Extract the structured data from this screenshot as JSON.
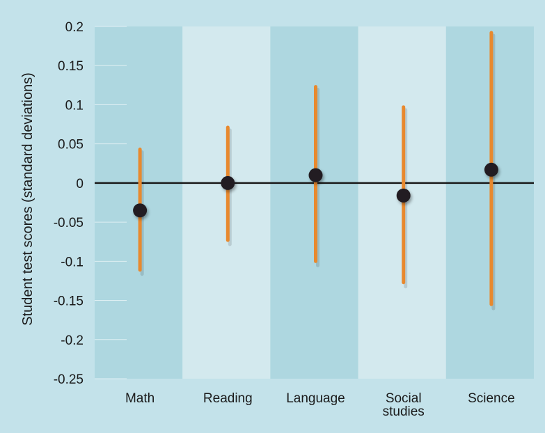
{
  "chart_data": {
    "type": "errorbar",
    "title": "",
    "xlabel": "",
    "ylabel": "Student test scores (standard deviations)",
    "ylim": [
      -0.25,
      0.2
    ],
    "yticks": [
      0.2,
      0.15,
      0.1,
      0.05,
      0,
      -0.05,
      -0.1,
      -0.15,
      -0.2,
      -0.25
    ],
    "ytick_labels": [
      "0.2",
      "0.15",
      "0.1",
      "0.05",
      "0",
      "-0.05",
      "-0.1",
      "-0.15",
      "-0.2",
      "-0.25"
    ],
    "categories": [
      "Math",
      "Reading",
      "Language",
      "Social studies",
      "Science"
    ],
    "category_label_lines": [
      [
        "Math"
      ],
      [
        "Reading"
      ],
      [
        "Language"
      ],
      [
        "Social",
        "studies"
      ],
      [
        "Science"
      ]
    ],
    "values": [
      -0.035,
      0.0,
      0.01,
      -0.016,
      0.017
    ],
    "ci_low": [
      -0.111,
      -0.073,
      -0.1,
      -0.127,
      -0.155
    ],
    "ci_high": [
      0.043,
      0.071,
      0.123,
      0.097,
      0.192
    ],
    "grid": false,
    "colors": {
      "background": "#c3e2ea",
      "band_dark": "#aed7e0",
      "band_light": "#d3e9ee",
      "error_bar": "#e8892e",
      "point": "#231f20",
      "zero_line": "#1a1a1a"
    }
  }
}
